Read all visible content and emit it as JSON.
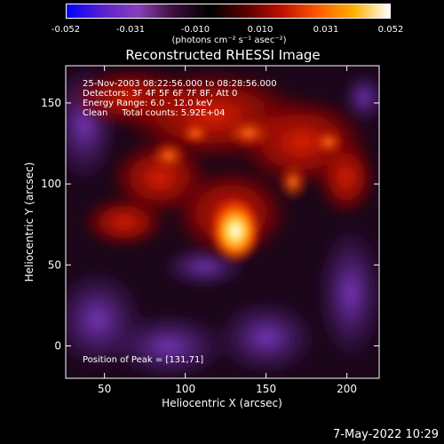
{
  "colorbar": {
    "ticks": [
      "-0.052",
      "-0.031",
      "-0.010",
      "0.010",
      "0.031",
      "0.052"
    ],
    "unit_label": "(photons cm⁻² s⁻¹ asec⁻²)",
    "colors": [
      "#0000ff",
      "#5a20d0",
      "#8a3fb8",
      "#3a0d38",
      "#000000",
      "#5a0000",
      "#c01000",
      "#ff5a00",
      "#ffb000",
      "#ffffff"
    ]
  },
  "chart_data": {
    "type": "heatmap",
    "title": "Reconstructed RHESSI Image",
    "xlabel": "Heliocentric X (arcsec)",
    "ylabel": "Heliocentric Y (arcsec)",
    "xlim": [
      26,
      220
    ],
    "ylim": [
      -20,
      173
    ],
    "xticks": [
      50,
      100,
      150,
      200
    ],
    "yticks": [
      0,
      50,
      100,
      150
    ],
    "value_range": [
      -0.052,
      0.052
    ],
    "peak": {
      "x": 131,
      "y": 71
    },
    "annotations": [
      "25-Nov-2003 08:22:56.000 to 08:28:56.000",
      "Detectors: 3F 4F 5F 6F 7F 8F, Att 0",
      "Energy Range: 6.0 - 12.0 keV",
      "Clean     Total counts: 5.92E+04"
    ],
    "peak_label": "Position of Peak = [131,71]"
  },
  "footer": {
    "timestamp": "7-May-2022 10:29"
  }
}
